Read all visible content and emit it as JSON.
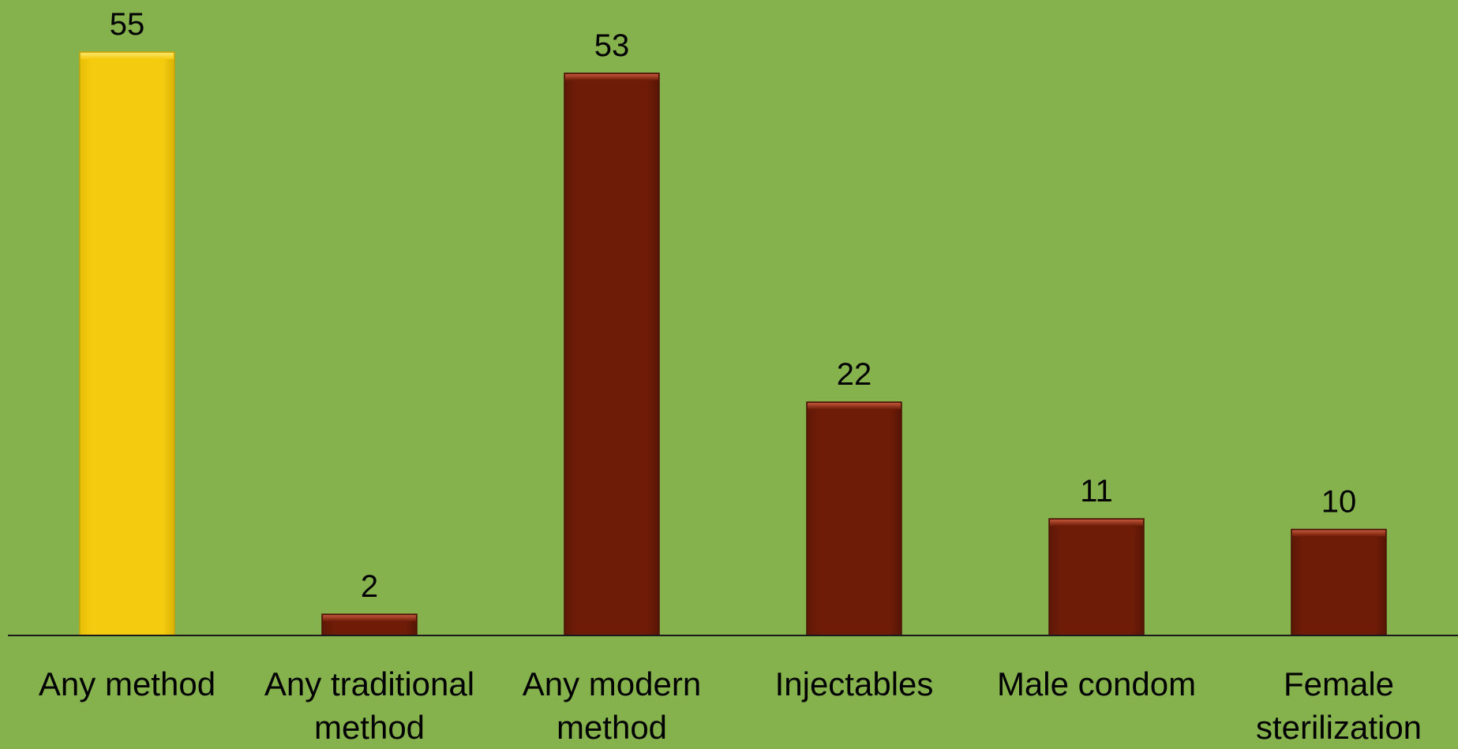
{
  "chart_data": {
    "type": "bar",
    "categories": [
      "Any method",
      "Any traditional method",
      "Any modern method",
      "Injectables",
      "Male condom",
      "Female sterilization"
    ],
    "category_lines": [
      [
        "Any method"
      ],
      [
        "Any traditional",
        "method"
      ],
      [
        "Any modern",
        "method"
      ],
      [
        "Injectables"
      ],
      [
        "Male condom"
      ],
      [
        "Female",
        "sterilization"
      ]
    ],
    "values": [
      55,
      2,
      53,
      22,
      11,
      10
    ],
    "data_labels": [
      "55",
      "2",
      "53",
      "22",
      "11",
      "10"
    ],
    "ylim": [
      0,
      55
    ],
    "grid": false,
    "legend": "none",
    "bar_colors": [
      "#f4cb0e",
      "#6e1c08",
      "#6e1c08",
      "#6e1c08",
      "#6e1c08",
      "#6e1c08"
    ],
    "background_color": "#86b24d",
    "title": "",
    "xlabel": "",
    "ylabel": ""
  }
}
